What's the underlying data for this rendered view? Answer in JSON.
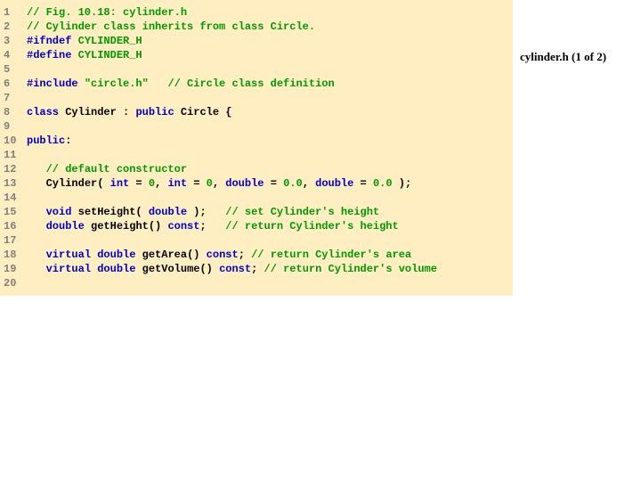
{
  "colors": {
    "code_bg": "#ffeec2",
    "line_number": "#808080",
    "keyword": "#0000c8",
    "string_comment_num": "#009a00",
    "plain": "#000000"
  },
  "typography": {
    "code_font": "Courier New, monospace",
    "code_fontsize": 12,
    "code_fontweight": "bold",
    "label_font": "Georgia, Times New Roman, serif",
    "label_fontsize": 13,
    "line_height": 16
  },
  "layout": {
    "code_width": 576,
    "gutter_width": 26,
    "total_width": 720,
    "total_height": 540
  },
  "side_label": "cylinder.h (1 of 2)",
  "line_count": 20,
  "lines": {
    "l1": {
      "n": "1"
    },
    "l2": {
      "n": "2"
    },
    "l3": {
      "n": "3"
    },
    "l4": {
      "n": "4"
    },
    "l5": {
      "n": "5"
    },
    "l6": {
      "n": "6"
    },
    "l7": {
      "n": "7"
    },
    "l8": {
      "n": "8"
    },
    "l9": {
      "n": "9"
    },
    "l10": {
      "n": "10"
    },
    "l11": {
      "n": "11"
    },
    "l12": {
      "n": "12"
    },
    "l13": {
      "n": "13"
    },
    "l14": {
      "n": "14"
    },
    "l15": {
      "n": "15"
    },
    "l16": {
      "n": "16"
    },
    "l17": {
      "n": "17"
    },
    "l18": {
      "n": "18"
    },
    "l19": {
      "n": "19"
    },
    "l20": {
      "n": "20"
    }
  },
  "tok": {
    "c1": "// Fig. 10.18: cylinder.h",
    "c2": "// Cylinder class inherits from class Circle.",
    "k_ifndef": "#ifndef",
    "s_cyl_h1": " CYLINDER_H",
    "k_define": "#define",
    "s_cyl_h2": " CYLINDER_H",
    "k_include": "#include",
    "sp1": " ",
    "s_circleh": "\"circle.h\"",
    "sp_c6": "   ",
    "c6": "// Circle class definition",
    "k_class": "class",
    "t8a": " Cylinder : ",
    "k_public8": "public",
    "t8b": " Circle {",
    "k_public10": "public",
    "t10": ":",
    "ind": "   ",
    "c12": "// default constructor",
    "t13a": "Cylinder( ",
    "k_int1": "int",
    "t13b": " = ",
    "n0a": "0",
    "t13c": ", ",
    "k_int2": "int",
    "t13d": " = ",
    "n0b": "0",
    "t13e": ", ",
    "k_double1": "double",
    "t13f": " = ",
    "n00a": "0.0",
    "t13g": ", ",
    "k_double2": "double",
    "t13h": " = ",
    "n00b": "0.0",
    "t13i": " );",
    "k_void15": "void",
    "t15a": " setHeight( ",
    "k_double15": "double",
    "t15b": " );   ",
    "c15": "// set Cylinder's height",
    "k_double16": "double",
    "t16a": " getHeight() ",
    "k_const16": "const",
    "t16b": ";   ",
    "c16": "// return Cylinder's height",
    "k_virtual18": "virtual",
    "sp18a": " ",
    "k_double18": "double",
    "t18a": " getArea() ",
    "k_const18": "const",
    "t18b": "; ",
    "c18": "// return Cylinder's area",
    "k_virtual19": "virtual",
    "sp19a": " ",
    "k_double19": "double",
    "t19a": " getVolume() ",
    "k_const19": "const",
    "t19b": "; ",
    "c19": "// return Cylinder's volume"
  }
}
